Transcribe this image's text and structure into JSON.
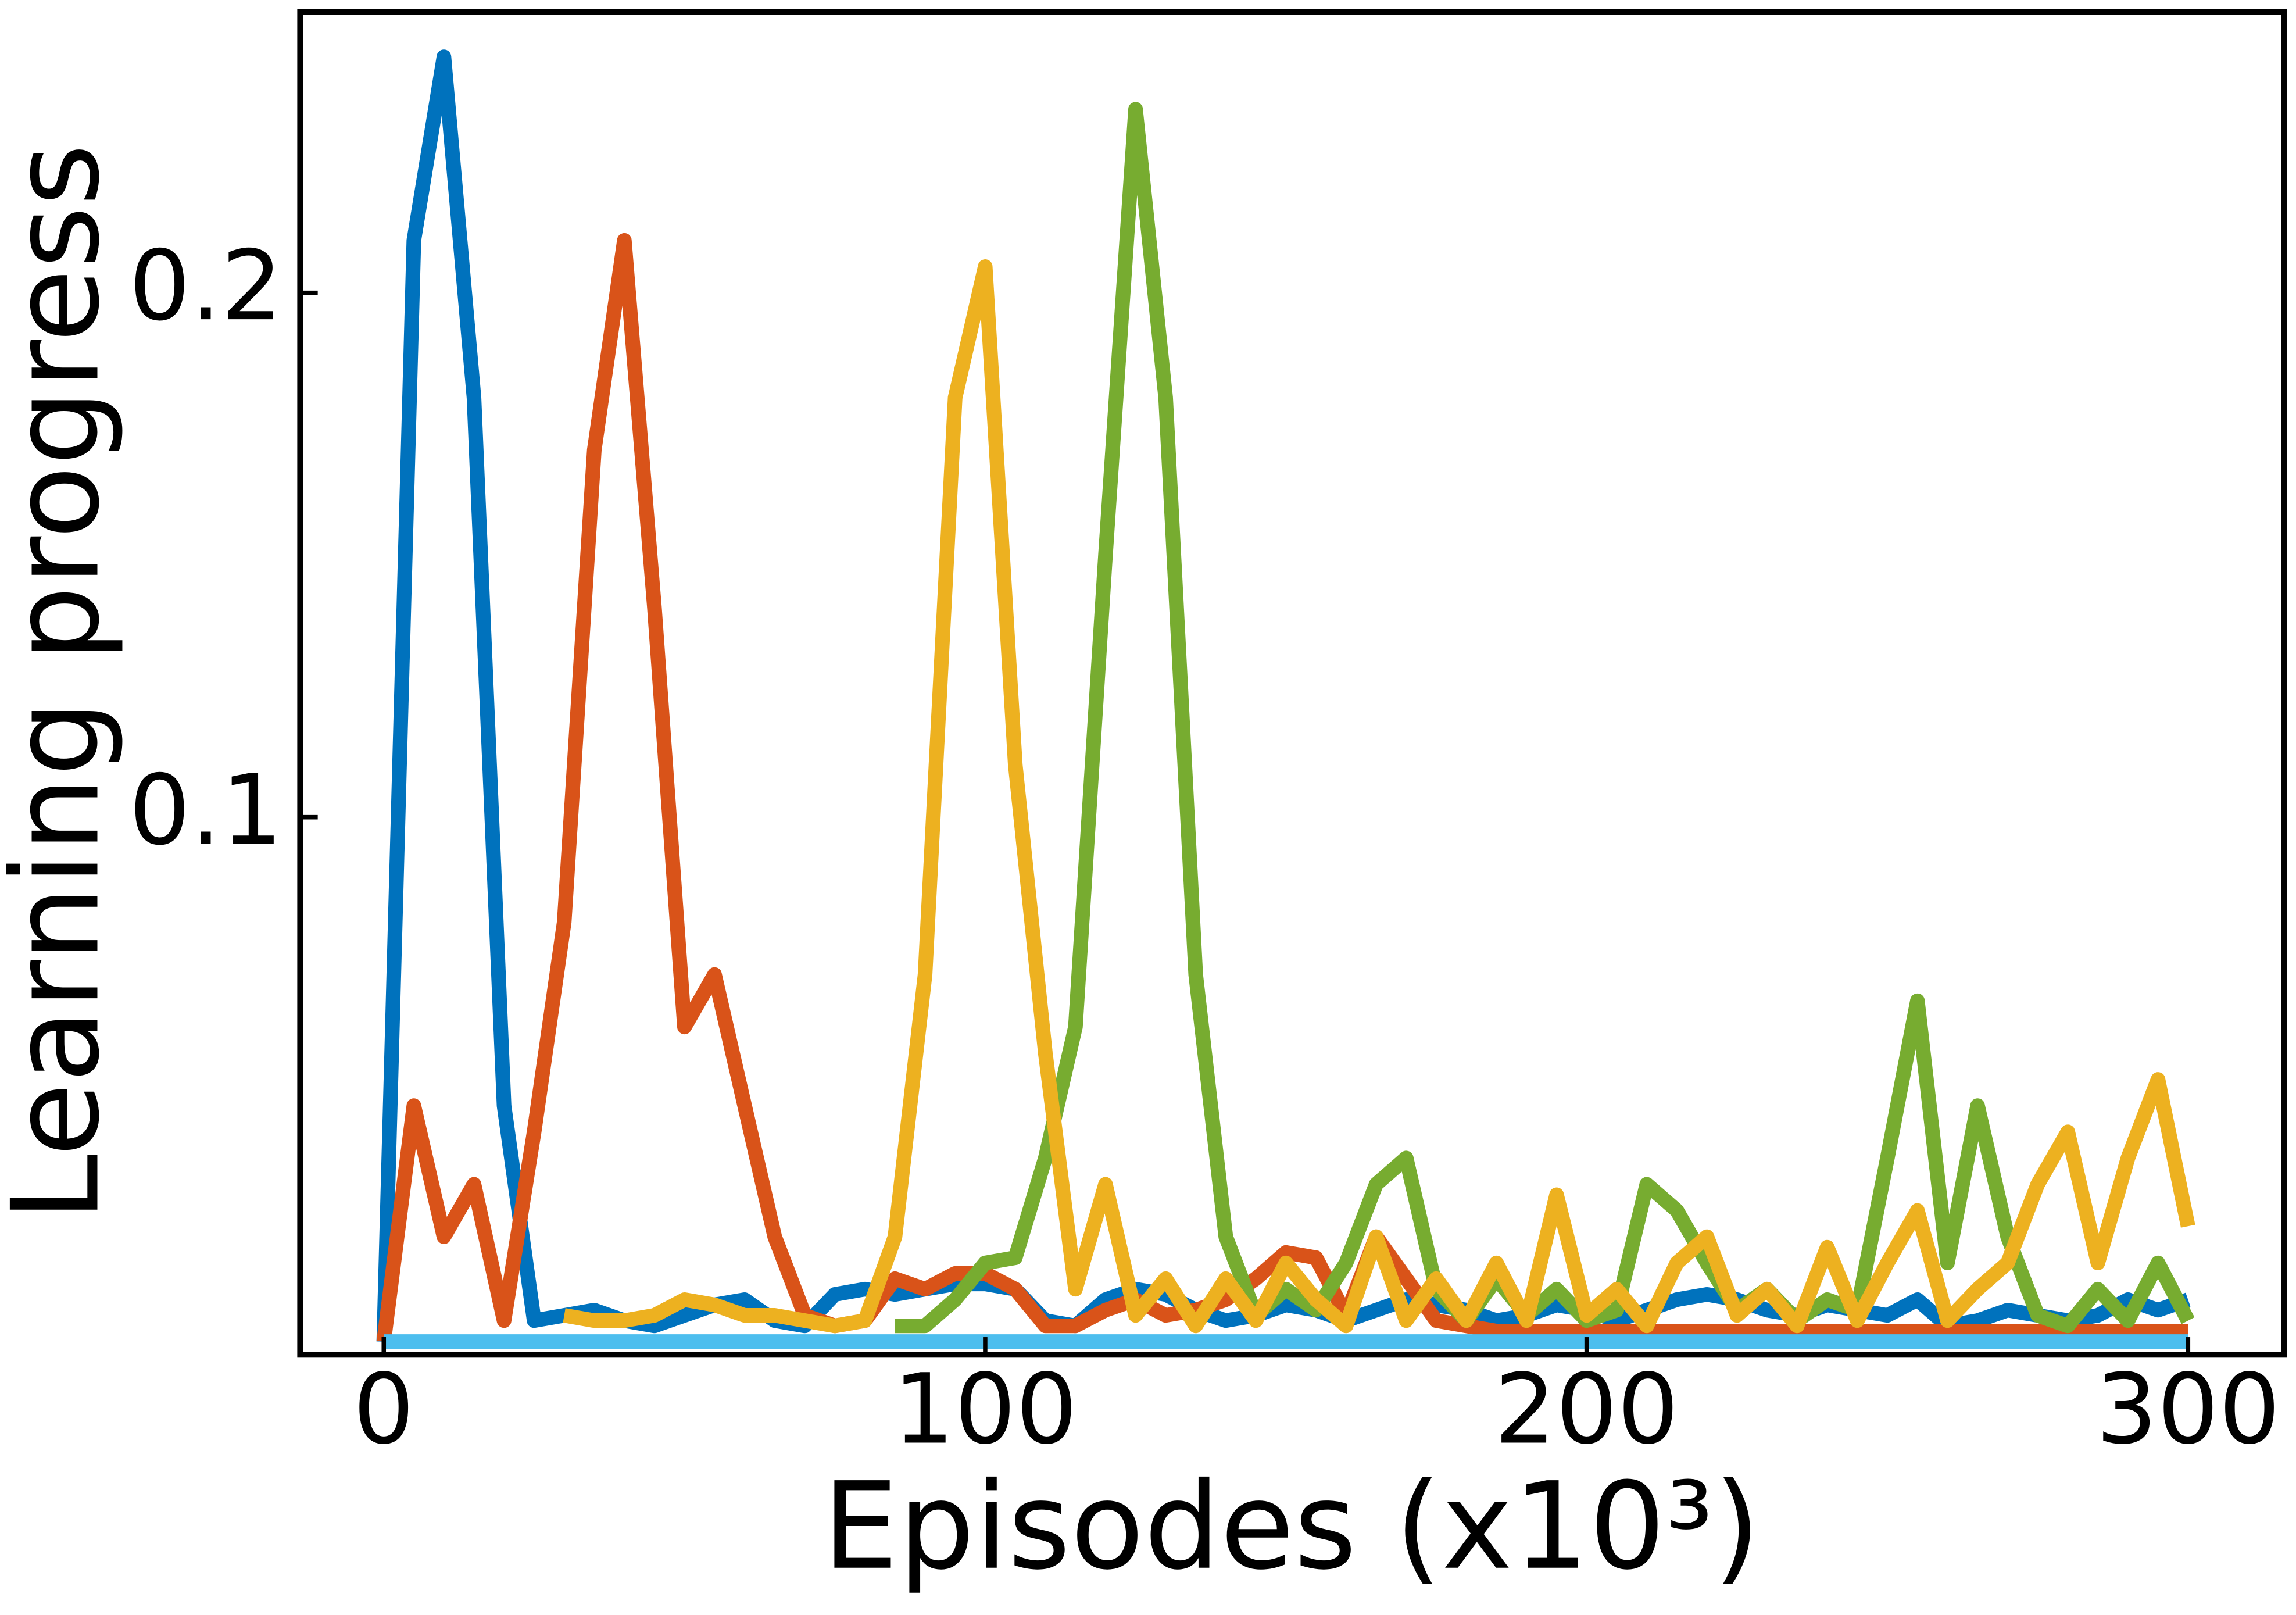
{
  "chart_data": {
    "type": "line",
    "xlabel": "Episodes (x10³)",
    "ylabel": "Learning progress",
    "x": [
      0,
      5,
      10,
      15,
      20,
      25,
      30,
      35,
      40,
      45,
      50,
      55,
      60,
      65,
      70,
      75,
      80,
      85,
      90,
      95,
      100,
      105,
      110,
      115,
      120,
      125,
      130,
      135,
      140,
      145,
      150,
      155,
      160,
      165,
      170,
      175,
      180,
      185,
      190,
      195,
      200,
      205,
      210,
      215,
      220,
      225,
      230,
      235,
      240,
      245,
      250,
      255,
      260,
      265,
      270,
      275,
      280,
      285,
      290,
      295,
      300
    ],
    "xlim": [
      -13.9,
      316
    ],
    "xticks": [
      0,
      100,
      200,
      300
    ],
    "ylim": [
      -0.0025,
      0.2536
    ],
    "yticks": [
      0.1,
      0.2
    ],
    "series": [
      {
        "color": "#0072bd",
        "values": [
          0,
          0.21,
          0.245,
          0.18,
          0.045,
          0.004,
          0.005,
          0.006,
          0.004,
          0.003,
          0.005,
          0.007,
          0.008,
          0.004,
          0.003,
          0.009,
          0.01,
          0.009,
          0.01,
          0.011,
          0.011,
          0.01,
          0.004,
          0.003,
          0.008,
          0.01,
          0.009,
          0.006,
          0.004,
          0.005,
          0.007,
          0.006,
          0.004,
          0.006,
          0.008,
          0.007,
          0.006,
          0.004,
          0.005,
          0.007,
          0.006,
          0.004,
          0.006,
          0.008,
          0.009,
          0.008,
          0.006,
          0.005,
          0.007,
          0.006,
          0.005,
          0.008,
          0.003,
          0.004,
          0.006,
          0.005,
          0.004,
          0.005,
          0.008,
          0.006,
          0.008
        ]
      },
      {
        "color": "#d95319",
        "values": [
          0,
          0.045,
          0.02,
          0.03,
          0.004,
          0.04,
          0.08,
          0.17,
          0.21,
          0.14,
          0.06,
          0.07,
          0.045,
          0.02,
          0.005,
          0.003,
          0.004,
          0.012,
          0.01,
          0.013,
          0.013,
          0.01,
          0.003,
          0.003,
          0.006,
          0.008,
          0.005,
          0.006,
          0.008,
          0.012,
          0.017,
          0.016,
          0.005,
          0.02,
          0.012,
          0.004,
          0.003,
          0.002,
          0.002,
          0.002,
          0.002,
          0.002,
          0.002,
          0.002,
          0.002,
          0.002,
          0.002,
          0.002,
          0.002,
          0.002,
          0.002,
          0.002,
          0.002,
          0.002,
          0.002,
          0.002,
          0.002,
          0.002,
          0.002,
          0.002,
          0.002
        ]
      },
      {
        "color": "#77ac30",
        "values": [
          null,
          null,
          null,
          null,
          null,
          null,
          null,
          null,
          null,
          null,
          null,
          null,
          null,
          null,
          null,
          null,
          null,
          0.003,
          0.003,
          0.008,
          0.015,
          0.016,
          0.035,
          0.06,
          0.15,
          0.235,
          0.18,
          0.07,
          0.02,
          0.005,
          0.01,
          0.006,
          0.015,
          0.03,
          0.035,
          0.01,
          0.004,
          0.012,
          0.005,
          0.01,
          0.004,
          0.006,
          0.03,
          0.025,
          0.015,
          0.006,
          0.01,
          0.004,
          0.008,
          0.006,
          0.035,
          0.065,
          0.015,
          0.045,
          0.02,
          0.005,
          0.003,
          0.01,
          0.004,
          0.015,
          0.004
        ]
      },
      {
        "color": "#edb120",
        "values": [
          null,
          null,
          null,
          null,
          null,
          null,
          0.005,
          0.004,
          0.004,
          0.005,
          0.008,
          0.007,
          0.005,
          0.005,
          0.004,
          0.003,
          0.004,
          0.02,
          0.07,
          0.18,
          0.205,
          0.11,
          0.055,
          0.01,
          0.03,
          0.005,
          0.012,
          0.003,
          0.012,
          0.004,
          0.015,
          0.008,
          0.003,
          0.02,
          0.004,
          0.012,
          0.004,
          0.015,
          0.004,
          0.028,
          0.005,
          0.01,
          0.003,
          0.015,
          0.02,
          0.005,
          0.01,
          0.003,
          0.018,
          0.004,
          0.015,
          0.025,
          0.004,
          0.01,
          0.015,
          0.03,
          0.04,
          0.015,
          0.035,
          0.05,
          0.022
        ]
      },
      {
        "color": "#4dbeee",
        "values": [
          0,
          0,
          0,
          0,
          0,
          0,
          0,
          0,
          0,
          0,
          0,
          0,
          0,
          0,
          0,
          0,
          0,
          0,
          0,
          0,
          0,
          0,
          0,
          0,
          0,
          0,
          0,
          0,
          0,
          0,
          0,
          0,
          0,
          0,
          0,
          0,
          0,
          0,
          0,
          0,
          0,
          0,
          0,
          0,
          0,
          0,
          0,
          0,
          0,
          0,
          0,
          0,
          0,
          0,
          0,
          0,
          0,
          0,
          0,
          0,
          0
        ]
      }
    ]
  }
}
